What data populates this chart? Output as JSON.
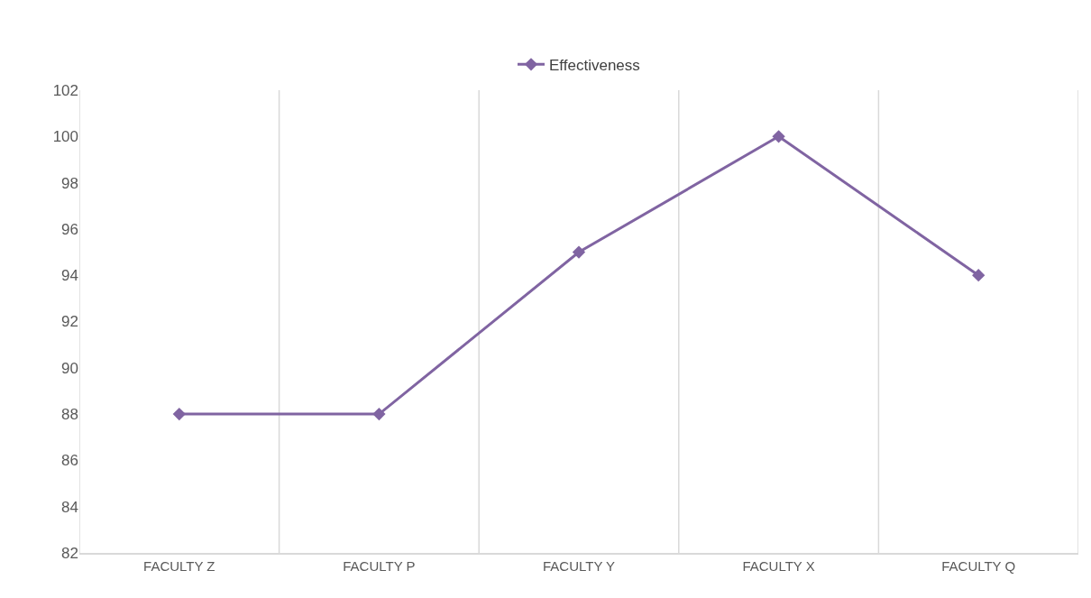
{
  "chart_data": {
    "type": "line",
    "categories": [
      "FACULTY Z",
      "FACULTY P",
      "FACULTY Y",
      "FACULTY X",
      "FACULTY Q"
    ],
    "series": [
      {
        "name": "Effectiveness",
        "color": "#8064a2",
        "values": [
          88,
          88,
          95,
          100,
          94
        ]
      }
    ],
    "ylim": [
      82,
      102
    ],
    "yticks": [
      82,
      84,
      86,
      88,
      90,
      92,
      94,
      96,
      98,
      100,
      102
    ],
    "grid": "x",
    "legend": "top",
    "marker": "diamond",
    "line_style": "solid"
  }
}
